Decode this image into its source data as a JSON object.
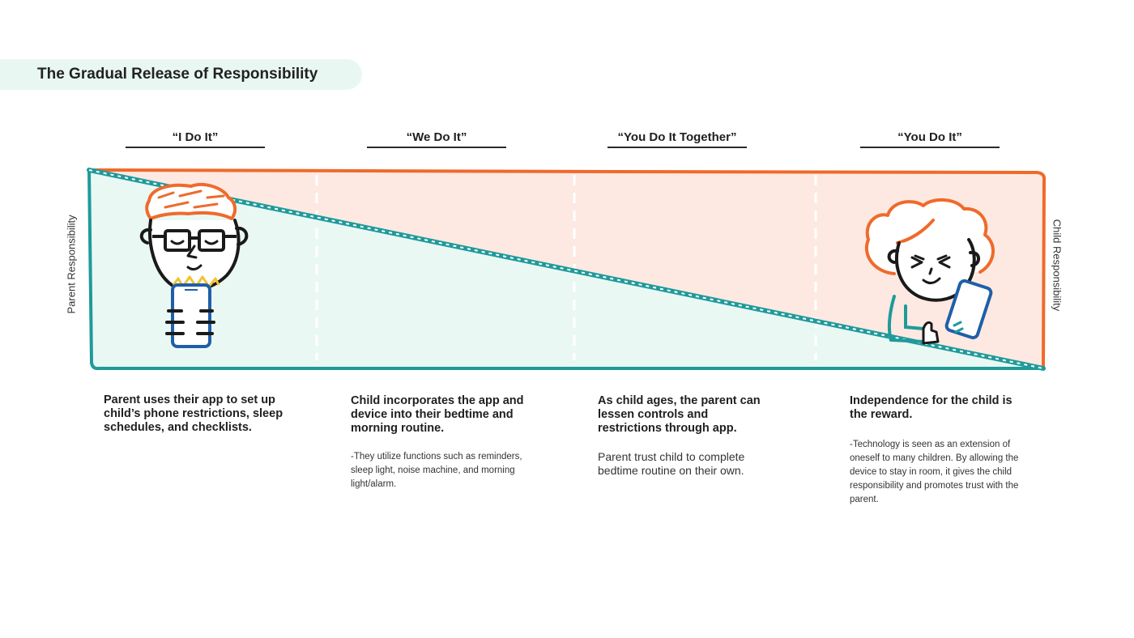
{
  "title": "The Gradual Release of Responsibility",
  "phases": [
    {
      "label": "“I Do It”"
    },
    {
      "label": "“We Do It”"
    },
    {
      "label": "“You Do It Together”"
    },
    {
      "label": "“You Do It”"
    }
  ],
  "axis": {
    "left_label": "Parent Responsibility",
    "right_label": "Child Responsibility"
  },
  "descriptions": [
    {
      "heading": "Parent uses their app to set up child’s phone restrictions, sleep schedules, and checklists.",
      "note": ""
    },
    {
      "heading": "Child incorporates the app and device into their bedtime and morning routine.",
      "note": "-They utilize functions such as reminders, sleep light, noise machine, and morning light/alarm."
    },
    {
      "heading": "As child ages, the parent can lessen controls and restrictions through app.",
      "note": "Parent trust child to complete bedtime routine on their own."
    },
    {
      "heading": "Independence for the child is the reward.",
      "note": "-Technology is seen as an extension of oneself to many children. By allowing the device to stay in room, it gives the child responsibility and promotes trust with the parent."
    }
  ],
  "colors": {
    "teal": "#1f9a9a",
    "teal_fill": "#eaf8f4",
    "orange": "#ef6a2b",
    "orange_fill": "#fde9e1",
    "title_bg": "#e9f7f3"
  },
  "illustrations": [
    "parent-with-glasses-holding-phone",
    "child-holding-phone-thumbs-up"
  ]
}
